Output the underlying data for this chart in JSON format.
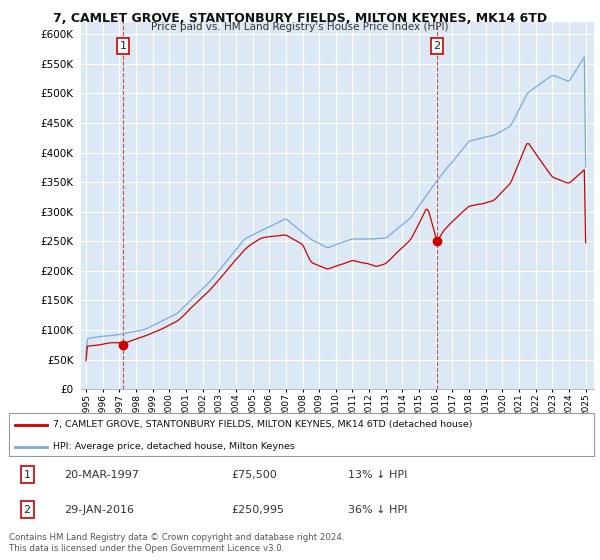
{
  "title": "7, CAMLET GROVE, STANTONBURY FIELDS, MILTON KEYNES, MK14 6TD",
  "subtitle": "Price paid vs. HM Land Registry's House Price Index (HPI)",
  "legend_entry1": "7, CAMLET GROVE, STANTONBURY FIELDS, MILTON KEYNES, MK14 6TD (detached house)",
  "legend_entry2": "HPI: Average price, detached house, Milton Keynes",
  "transaction1_label": "1",
  "transaction1_date": "20-MAR-1997",
  "transaction1_price": "£75,500",
  "transaction1_note": "13% ↓ HPI",
  "transaction2_label": "2",
  "transaction2_date": "29-JAN-2016",
  "transaction2_price": "£250,995",
  "transaction2_note": "36% ↓ HPI",
  "footer": "Contains HM Land Registry data © Crown copyright and database right 2024.\nThis data is licensed under the Open Government Licence v3.0.",
  "hpi_color": "#7aaadd",
  "price_color": "#cc0000",
  "marker_color": "#cc0000",
  "bg_color": "#ffffff",
  "plot_bg_color": "#dce9f5",
  "grid_color": "#ffffff",
  "ylim": [
    0,
    620000
  ],
  "yticks": [
    0,
    50000,
    100000,
    150000,
    200000,
    250000,
    300000,
    350000,
    400000,
    450000,
    500000,
    550000,
    600000
  ],
  "t1_year": 1997.22,
  "t1_price": 75500,
  "t2_year": 2016.08,
  "t2_price": 250995
}
